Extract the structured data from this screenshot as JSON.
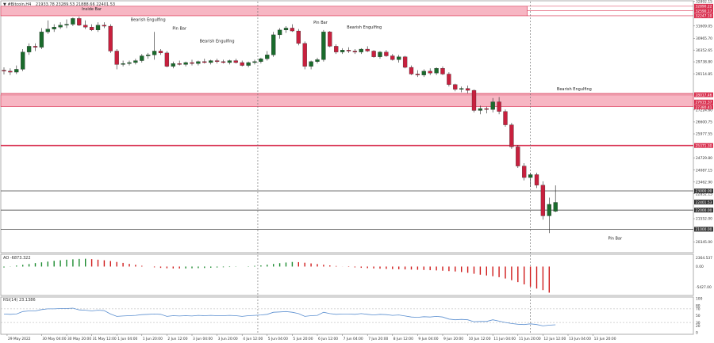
{
  "header": {
    "symbol_label": "#Bitcoin,H4",
    "ohlc_label": "21933.78 23289.53 21888.66 22401.53"
  },
  "ao_panel": {
    "label": "AO -6873.322"
  },
  "rsi_panel": {
    "label": "RSI(14) 23.1386"
  },
  "chart_data": [
    {
      "type": "candlestick",
      "title": "#Bitcoin,H4",
      "ylim": [
        19900,
        32800
      ],
      "candles": [
        {
          "o": 29300,
          "h": 29450,
          "l": 29080,
          "c": 29250
        },
        {
          "o": 29250,
          "h": 29400,
          "l": 29050,
          "c": 29200
        },
        {
          "o": 29200,
          "h": 29550,
          "l": 29100,
          "c": 29350
        },
        {
          "o": 29350,
          "h": 30400,
          "l": 29250,
          "c": 30250
        },
        {
          "o": 30250,
          "h": 30700,
          "l": 30100,
          "c": 30550
        },
        {
          "o": 30550,
          "h": 30700,
          "l": 30300,
          "c": 30500
        },
        {
          "o": 30500,
          "h": 31500,
          "l": 30400,
          "c": 31300
        },
        {
          "o": 31300,
          "h": 31900,
          "l": 31200,
          "c": 31450
        },
        {
          "o": 31450,
          "h": 31700,
          "l": 31300,
          "c": 31550
        },
        {
          "o": 31550,
          "h": 31800,
          "l": 31450,
          "c": 31650
        },
        {
          "o": 31650,
          "h": 31950,
          "l": 31500,
          "c": 31700
        },
        {
          "o": 31700,
          "h": 32050,
          "l": 31600,
          "c": 32000
        },
        {
          "o": 32000,
          "h": 32100,
          "l": 31600,
          "c": 31650
        },
        {
          "o": 31650,
          "h": 31900,
          "l": 31450,
          "c": 31550
        },
        {
          "o": 31550,
          "h": 31700,
          "l": 31350,
          "c": 31400
        },
        {
          "o": 31400,
          "h": 31800,
          "l": 31300,
          "c": 31650
        },
        {
          "o": 31650,
          "h": 31800,
          "l": 31500,
          "c": 31600
        },
        {
          "o": 31600,
          "h": 31700,
          "l": 30200,
          "c": 30300
        },
        {
          "o": 30300,
          "h": 30400,
          "l": 29350,
          "c": 29600
        },
        {
          "o": 29600,
          "h": 29800,
          "l": 29500,
          "c": 29650
        },
        {
          "o": 29650,
          "h": 29800,
          "l": 29550,
          "c": 29700
        },
        {
          "o": 29700,
          "h": 29900,
          "l": 29600,
          "c": 29800
        },
        {
          "o": 29800,
          "h": 30150,
          "l": 29700,
          "c": 30050
        },
        {
          "o": 30050,
          "h": 30200,
          "l": 29900,
          "c": 30100
        },
        {
          "o": 30100,
          "h": 31300,
          "l": 29850,
          "c": 30300
        },
        {
          "o": 30300,
          "h": 30400,
          "l": 30100,
          "c": 30200
        },
        {
          "o": 30200,
          "h": 30300,
          "l": 29450,
          "c": 29500
        },
        {
          "o": 29500,
          "h": 29750,
          "l": 29400,
          "c": 29650
        },
        {
          "o": 29650,
          "h": 29800,
          "l": 29550,
          "c": 29600
        },
        {
          "o": 29600,
          "h": 29750,
          "l": 29500,
          "c": 29700
        },
        {
          "o": 29700,
          "h": 29850,
          "l": 29550,
          "c": 29650
        },
        {
          "o": 29650,
          "h": 29800,
          "l": 29550,
          "c": 29750
        },
        {
          "o": 29750,
          "h": 29900,
          "l": 29650,
          "c": 29700
        },
        {
          "o": 29700,
          "h": 29850,
          "l": 29600,
          "c": 29800
        },
        {
          "o": 29800,
          "h": 29900,
          "l": 29650,
          "c": 29750
        },
        {
          "o": 29750,
          "h": 29850,
          "l": 29650,
          "c": 29700
        },
        {
          "o": 29700,
          "h": 29850,
          "l": 29600,
          "c": 29800
        },
        {
          "o": 29800,
          "h": 29900,
          "l": 29650,
          "c": 29700
        },
        {
          "o": 29700,
          "h": 29800,
          "l": 29500,
          "c": 29550
        },
        {
          "o": 29550,
          "h": 29750,
          "l": 29450,
          "c": 29700
        },
        {
          "o": 29700,
          "h": 29850,
          "l": 29600,
          "c": 29750
        },
        {
          "o": 29750,
          "h": 29950,
          "l": 29650,
          "c": 29900
        },
        {
          "o": 29900,
          "h": 30300,
          "l": 29800,
          "c": 30100
        },
        {
          "o": 30100,
          "h": 31300,
          "l": 30000,
          "c": 31150
        },
        {
          "o": 31150,
          "h": 31500,
          "l": 30950,
          "c": 31400
        },
        {
          "o": 31400,
          "h": 31600,
          "l": 31250,
          "c": 31500
        },
        {
          "o": 31500,
          "h": 31700,
          "l": 31300,
          "c": 31350
        },
        {
          "o": 31350,
          "h": 31450,
          "l": 30600,
          "c": 30700
        },
        {
          "o": 30700,
          "h": 30800,
          "l": 29350,
          "c": 29500
        },
        {
          "o": 29500,
          "h": 29800,
          "l": 29350,
          "c": 29750
        },
        {
          "o": 29750,
          "h": 29950,
          "l": 29650,
          "c": 29850
        },
        {
          "o": 29850,
          "h": 31400,
          "l": 29750,
          "c": 31300
        },
        {
          "o": 31300,
          "h": 31350,
          "l": 30500,
          "c": 30550
        },
        {
          "o": 30550,
          "h": 30650,
          "l": 30150,
          "c": 30250
        },
        {
          "o": 30250,
          "h": 30450,
          "l": 30150,
          "c": 30350
        },
        {
          "o": 30350,
          "h": 30500,
          "l": 30200,
          "c": 30300
        },
        {
          "o": 30300,
          "h": 30400,
          "l": 30150,
          "c": 30250
        },
        {
          "o": 30250,
          "h": 30450,
          "l": 30150,
          "c": 30400
        },
        {
          "o": 30400,
          "h": 30550,
          "l": 30250,
          "c": 30300
        },
        {
          "o": 30300,
          "h": 30350,
          "l": 29950,
          "c": 30000
        },
        {
          "o": 30000,
          "h": 30300,
          "l": 29900,
          "c": 30250
        },
        {
          "o": 30250,
          "h": 30350,
          "l": 30000,
          "c": 30050
        },
        {
          "o": 30050,
          "h": 30150,
          "l": 29800,
          "c": 29850
        },
        {
          "o": 29850,
          "h": 30100,
          "l": 29700,
          "c": 30000
        },
        {
          "o": 30000,
          "h": 30050,
          "l": 29400,
          "c": 29450
        },
        {
          "o": 29450,
          "h": 29550,
          "l": 29050,
          "c": 29100
        },
        {
          "o": 29100,
          "h": 29300,
          "l": 28950,
          "c": 29050
        },
        {
          "o": 29050,
          "h": 29350,
          "l": 28950,
          "c": 29250
        },
        {
          "o": 29250,
          "h": 29400,
          "l": 29050,
          "c": 29150
        },
        {
          "o": 29150,
          "h": 29450,
          "l": 29050,
          "c": 29400
        },
        {
          "o": 29400,
          "h": 29500,
          "l": 29050,
          "c": 29100
        },
        {
          "o": 29100,
          "h": 29200,
          "l": 28450,
          "c": 28550
        },
        {
          "o": 28550,
          "h": 28600,
          "l": 28200,
          "c": 28300
        },
        {
          "o": 28300,
          "h": 28450,
          "l": 28150,
          "c": 28350
        },
        {
          "o": 28350,
          "h": 28500,
          "l": 28100,
          "c": 28250
        },
        {
          "o": 28250,
          "h": 28300,
          "l": 27100,
          "c": 27200
        },
        {
          "o": 27200,
          "h": 27450,
          "l": 27000,
          "c": 27300
        },
        {
          "o": 27300,
          "h": 27400,
          "l": 27050,
          "c": 27250
        },
        {
          "o": 27250,
          "h": 27850,
          "l": 27100,
          "c": 27650
        },
        {
          "o": 27650,
          "h": 27900,
          "l": 27000,
          "c": 27150
        },
        {
          "o": 27150,
          "h": 27250,
          "l": 26350,
          "c": 26450
        },
        {
          "o": 26450,
          "h": 26550,
          "l": 25200,
          "c": 25300
        },
        {
          "o": 25300,
          "h": 25400,
          "l": 24200,
          "c": 24300
        },
        {
          "o": 24300,
          "h": 24450,
          "l": 23550,
          "c": 23700
        },
        {
          "o": 23700,
          "h": 23950,
          "l": 23200,
          "c": 23850
        },
        {
          "o": 23850,
          "h": 23950,
          "l": 23150,
          "c": 23300
        },
        {
          "o": 23300,
          "h": 23500,
          "l": 21500,
          "c": 21700
        },
        {
          "o": 21700,
          "h": 22650,
          "l": 20800,
          "c": 22300
        },
        {
          "o": 21933.78,
          "h": 23289.53,
          "l": 21888.66,
          "c": 22401.53
        }
      ],
      "price_ticks": [
        "32892.15",
        "31609.05",
        "30965.70",
        "30352.65",
        "29738.80",
        "29114.85",
        "27224.60",
        "26600.75",
        "25977.55",
        "24729.80",
        "24087.15",
        "23462.90",
        "22852.15",
        "21552.00",
        "20345.00"
      ],
      "price_tags": [
        {
          "label": "32890.22",
          "value": 32640,
          "color": "#d9304f"
        },
        {
          "label": "32590.17",
          "value": 32400,
          "color": "#d9304f"
        },
        {
          "label": "32247.10",
          "value": 32140,
          "color": "#d9304f"
        },
        {
          "label": "28017.46",
          "value": 28020,
          "color": "#d9304f"
        },
        {
          "label": "27615.37",
          "value": 27640,
          "color": "#d9304f"
        },
        {
          "label": "27380.41",
          "value": 27380,
          "color": "#d9304f"
        },
        {
          "label": "25371.30",
          "value": 25370,
          "color": "#d9304f"
        },
        {
          "label": "23000.00",
          "value": 23000,
          "color": "#333333"
        },
        {
          "label": "22401.53",
          "value": 22420,
          "color": "#333333"
        },
        {
          "label": "22000.00",
          "value": 22000,
          "color": "#333333"
        },
        {
          "label": "21000.00",
          "value": 21000,
          "color": "#333333"
        }
      ],
      "zones": [
        {
          "from": 32140,
          "to": 32640,
          "end_candle": 83.5,
          "label": "Inside Bar"
        },
        {
          "from": 27400,
          "to": 28010,
          "end_candle": 99
        }
      ],
      "levels": [
        {
          "value": 28080,
          "color": "#d9304f",
          "width": 1
        },
        {
          "value": 25370,
          "color": "#d9304f",
          "width": 1.6
        },
        {
          "value": 23000,
          "color": "#444444",
          "width": 0.8
        },
        {
          "value": 22000,
          "color": "#444444",
          "width": 0.8
        },
        {
          "value": 21000,
          "color": "#444444",
          "width": 0.8
        }
      ],
      "annotations": [
        {
          "text": "Inside Bar",
          "candle": 14,
          "value": 32420
        },
        {
          "text": "Bearish Engulfing",
          "candle": 23,
          "value": 31880
        },
        {
          "text": "Pin Bar",
          "candle": 28,
          "value": 31420
        },
        {
          "text": "Bearish Engulfing",
          "candle": 34,
          "value": 30750
        },
        {
          "text": "Pin Bar",
          "candle": 50.5,
          "value": 31720
        },
        {
          "text": "Bearish Engulfing",
          "candle": 57.5,
          "value": 31480
        },
        {
          "text": "Bearish Engulfing",
          "candle": 91,
          "value": 28250
        },
        {
          "text": "Pin Bar",
          "candle": 97.5,
          "value": 20450
        }
      ],
      "separators": [
        40.5,
        84
      ]
    },
    {
      "type": "bar",
      "title": "AO -6873.322",
      "y_ticks": [
        "2364.537",
        "0.00",
        "-5427.00"
      ],
      "ylim": [
        -7200,
        2600
      ],
      "values": [
        -250,
        -50,
        250,
        450,
        650,
        900,
        1100,
        1300,
        1500,
        1650,
        1800,
        1900,
        2000,
        2050,
        1950,
        1800,
        1650,
        1450,
        1200,
        950,
        700,
        450,
        200,
        0,
        -200,
        -350,
        -450,
        -500,
        -520,
        -500,
        -460,
        -420,
        -380,
        -320,
        -250,
        -180,
        -120,
        -60,
        0,
        80,
        180,
        300,
        480,
        680,
        880,
        1050,
        1200,
        1150,
        1000,
        820,
        650,
        470,
        300,
        150,
        20,
        -100,
        -220,
        -330,
        -420,
        -500,
        -560,
        -620,
        -680,
        -720,
        -760,
        -800,
        -850,
        -900,
        -960,
        -1020,
        -1100,
        -1200,
        -1300,
        -1450,
        -1650,
        -1900,
        -2150,
        -2350,
        -2550,
        -2800,
        -3150,
        -3600,
        -4100,
        -4700,
        -5300,
        -5800,
        -6200,
        -6873.322
      ]
    },
    {
      "type": "line",
      "title": "RSI(14) 23.1386",
      "y_ticks": [
        "100",
        "80",
        "70",
        "50",
        "30",
        "20",
        "0"
      ],
      "ylim": [
        0,
        100
      ],
      "values": [
        55,
        54,
        55,
        62,
        64,
        64,
        68,
        70,
        70,
        71,
        71,
        72,
        67,
        66,
        64,
        66,
        65,
        55,
        48,
        49,
        50,
        51,
        53,
        54,
        55,
        54,
        48,
        50,
        49,
        50,
        49,
        51,
        50,
        51,
        50,
        50,
        51,
        50,
        48,
        50,
        51,
        52,
        54,
        60,
        61,
        62,
        60,
        56,
        48,
        50,
        51,
        60,
        56,
        54,
        55,
        55,
        54,
        56,
        54,
        52,
        54,
        53,
        51,
        52,
        49,
        46,
        45,
        47,
        46,
        48,
        46,
        40,
        38,
        39,
        38,
        32,
        33,
        33,
        38,
        34,
        30,
        27,
        25,
        24,
        26,
        24,
        20,
        22,
        23.14
      ],
      "levels": [
        70,
        30
      ]
    }
  ],
  "time_axis": {
    "labels": [
      {
        "text": "29 May 2022",
        "candle": 0.5
      },
      {
        "text": "30 May 04:00",
        "candle": 6
      },
      {
        "text": "30 May 20:00",
        "candle": 10
      },
      {
        "text": "31 May 12:00",
        "candle": 14
      },
      {
        "text": "1 Jun 04:00",
        "candle": 18
      },
      {
        "text": "1 Jun 20:00",
        "candle": 22
      },
      {
        "text": "2 Jun 12:00",
        "candle": 26
      },
      {
        "text": "3 Jun 04:00",
        "candle": 30
      },
      {
        "text": "3 Jun 20:00",
        "candle": 34
      },
      {
        "text": "4 Jun 12:00",
        "candle": 38
      },
      {
        "text": "5 Jun 04:00",
        "candle": 42
      },
      {
        "text": "5 Jun 20:00",
        "candle": 46
      },
      {
        "text": "6 Jun 12:00",
        "candle": 50
      },
      {
        "text": "7 Jun 04:00",
        "candle": 54
      },
      {
        "text": "7 Jun 20:00",
        "candle": 58
      },
      {
        "text": "8 Jun 12:00",
        "candle": 62
      },
      {
        "text": "9 Jun 04:00",
        "candle": 66
      },
      {
        "text": "9 Jun 20:00",
        "candle": 70
      },
      {
        "text": "10 Jun 12:00",
        "candle": 74
      },
      {
        "text": "11 Jun 04:00",
        "candle": 78
      },
      {
        "text": "11 Jun 20:00",
        "candle": 82
      },
      {
        "text": "12 Jun 12:00",
        "candle": 86
      },
      {
        "text": "13 Jun 04:00",
        "candle": 90
      },
      {
        "text": "13 Jun 20:00",
        "candle": 94
      }
    ]
  },
  "colors": {
    "bull": "#1a6b2c",
    "bear": "#c8203e",
    "zone_fill": "#f7b6c3",
    "zone_edge": "#d9304f",
    "ao_up": "#1a8a2e",
    "ao_down": "#d01a1a",
    "rsi_line": "#5b8fd0",
    "grid_sep": "#666666"
  }
}
